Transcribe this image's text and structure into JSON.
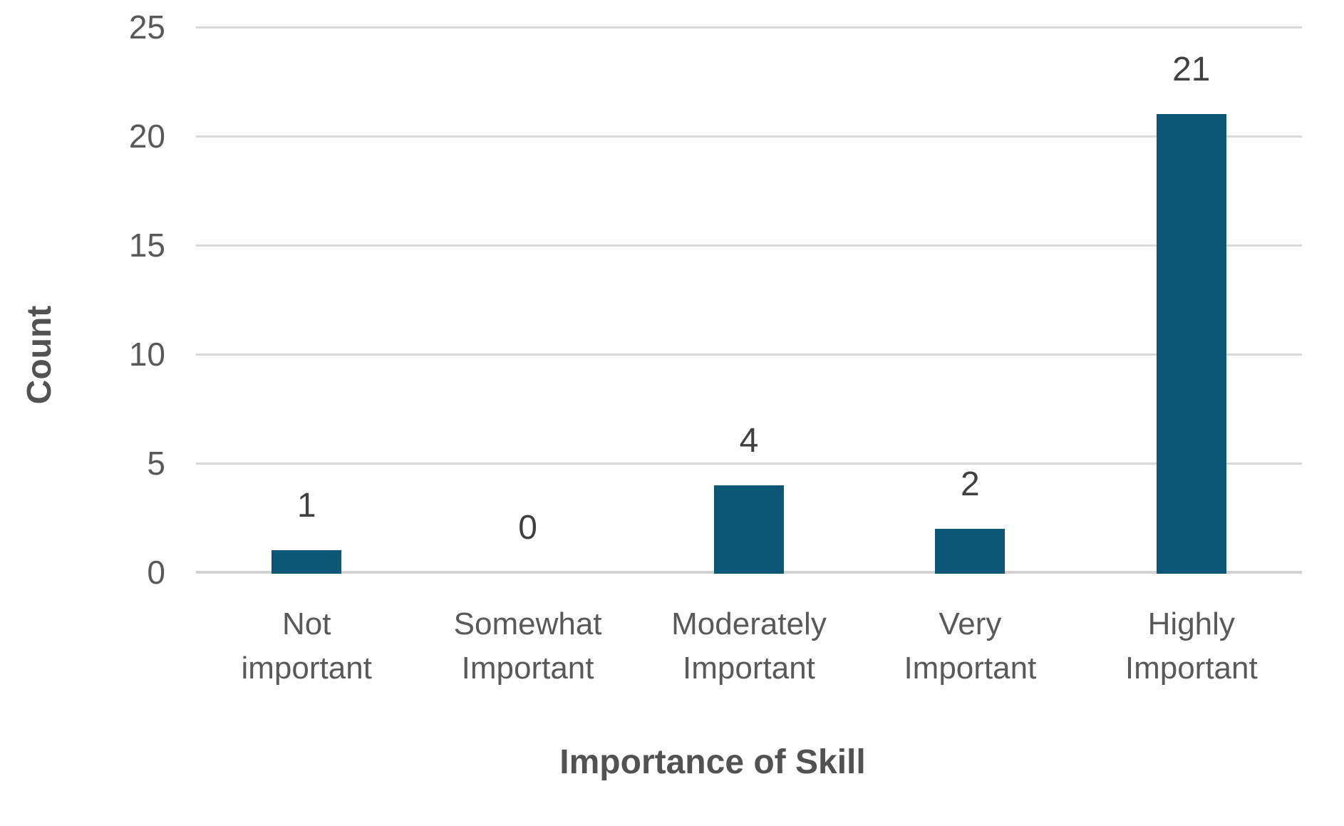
{
  "chart_data": {
    "type": "bar",
    "categories": [
      "Not important",
      "Somewhat Important",
      "Moderately Important",
      "Very Important",
      "Highly Important"
    ],
    "values": [
      1,
      0,
      4,
      2,
      21
    ],
    "data_labels": [
      "1",
      "0",
      "4",
      "2",
      "21"
    ],
    "title": "",
    "xlabel": "Importance of Skill",
    "ylabel": "Count",
    "ylim": [
      0,
      25
    ],
    "yticks": [
      0,
      5,
      10,
      15,
      20,
      25
    ],
    "ytick_labels": [
      "0",
      "5",
      "10",
      "15",
      "20",
      "25"
    ],
    "grid": "horizontal",
    "legend": "none",
    "colors": {
      "bar_fill": "#0d5776",
      "gridline": "#d9d9d9",
      "axis_line": "#d2d2d2",
      "tick_text": "#595959",
      "category_text": "#595959",
      "data_label_text": "#404040",
      "axis_title_text": "#525252",
      "background": "#ffffff"
    }
  }
}
